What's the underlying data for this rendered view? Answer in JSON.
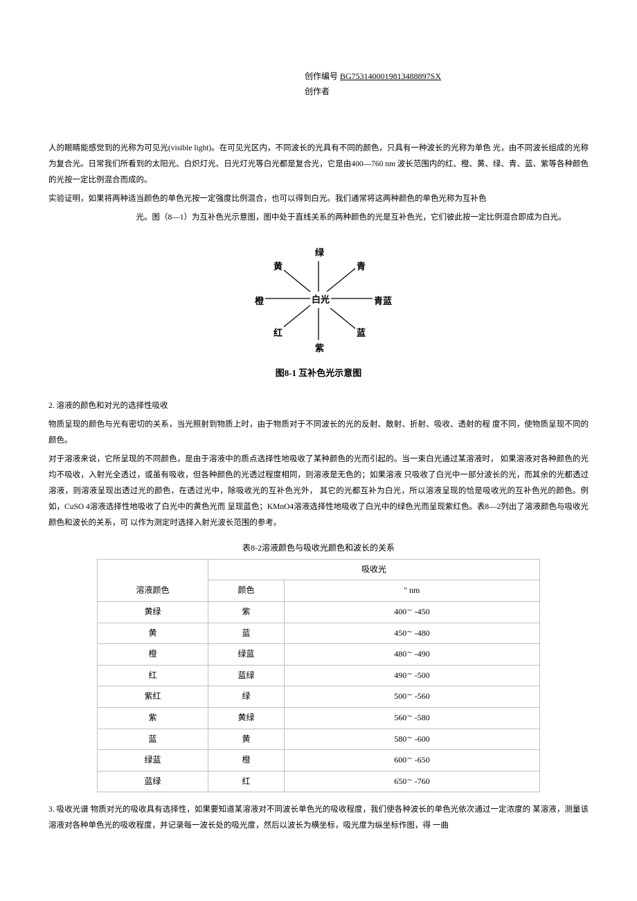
{
  "header": {
    "label_create_no": "创作编号",
    "code": "BG7531400019813488897SX",
    "label_creator": "创作者"
  },
  "paragraphs": {
    "p1": "人的眼睛能感觉到的光称为可见光(visible light)。在可见光区内，不同波长的光具有不同的颜色，只具有一种波长的光称为单色 光，由不同波长组成的光称为复合光。日常我们所看到的太阳光、白炽灯光、日光灯光等白光都是复合光，它是由400—760 nm 波长范围内的红、橙、黄、绿、青、蓝、紫等各种颜色的光按一定比例混合而成的。",
    "p2a": "实验证明，如果将两种适当颜色的单色光按一定强度比例混合，也可以得到白光。我们通常将这两种颜色的单色光称为互补色",
    "p2b": "光。图（8—1）为互补色光示意图，图中处于直线关系的两种颜色的光是互补色光，它们彼此按一定比例混合即成为白光。",
    "p3": "物质呈现的颜色与光有密切的关系，当光照射到物质上时，由于物质对于不同波长的光的反射、散射、折射、吸收、透射的程   度不同，使物质呈现不同的颜色。",
    "p4": "对于溶液来说，它所呈现的不同颜色，是由于溶液中的质点选择性地吸收了某种颜色的光而引起的。当一束白光通过某溶液时，    如果溶液对各种颜色的光均不吸收，入射光全透过，或虽有吸收，但各种颜色的光透过程度相同，则溶液是无色的；如果溶液 只吸收了白光中一部分波长的光，而其余的光都透过溶液，则溶液呈现出透过光的颜色，在透过光中，除吸收光的互补色光外，  其它的光都互补为白光，所以溶液呈现的恰是吸收光的互补色光的颜色。例如，CuSO 4溶液选择性地吸收了白光中的黄色光而  呈现蓝色；KMnO4溶液选择性地吸收了白光中的绿色光而呈现紫红色。表8—2列出了溶液颜色与吸收光颜色和波长的关系，可  以作为测定时选择入射光波长范围的参考。",
    "p5": "3. 吸收光谱 物质对光的吸收具有选择性，如果要知道某溶液对不同波长单色光的吸收程度，我们使各种波长的单色光依次通过一定浓度的 某溶液，测量该溶液对各种单色光的吸收程度，并记录每一波长处的吸光度，然后以波长为横坐标，吸光度为纵坐标作图，得 一曲"
  },
  "section2": "2. 溶液的颜色和对光的选择性吸收",
  "diagram": {
    "nodes": {
      "center": "白光",
      "top": "绿",
      "tr": "青",
      "r": "青蓝",
      "br": "蓝",
      "bottom": "紫",
      "bl": "红",
      "l": "橙",
      "tl": "黄"
    },
    "caption": "图8-1   互补色光示意图"
  },
  "table": {
    "caption": "表8-2溶液颜色与吸收光颜色和波长的关系",
    "header": {
      "sol_color": "溶液颜色",
      "abs_group": "吸收光",
      "abs_color": "颜色",
      "abs_wl_label": "'' nm"
    },
    "rows": [
      {
        "sol": "黄绿",
        "absC": "紫",
        "wl1": "400",
        "wl2": "-450"
      },
      {
        "sol": "黄",
        "absC": "蓝",
        "wl1": "450",
        "wl2": "-480"
      },
      {
        "sol": "橙",
        "absC": "绿蓝",
        "wl1": "480",
        "wl2": "-490"
      },
      {
        "sol": "红",
        "absC": "蓝绿",
        "wl1": "490",
        "wl2": "-500"
      },
      {
        "sol": "紫红",
        "absC": "绿",
        "wl1": "500",
        "wl2": "-560"
      },
      {
        "sol": "紫",
        "absC": "黄绿",
        "wl1": "560",
        "wl2": "-580"
      },
      {
        "sol": "蓝",
        "absC": "黄",
        "wl1": "580",
        "wl2": "-600"
      },
      {
        "sol": "绿蓝",
        "absC": "橙",
        "wl1": "600",
        "wl2": "-650"
      },
      {
        "sol": "蓝绿",
        "absC": "红",
        "wl1": "650",
        "wl2": "-760"
      }
    ]
  },
  "style": {
    "line_color": "#000000",
    "border_color": "#bfbfbf",
    "bg": "#ffffff"
  }
}
